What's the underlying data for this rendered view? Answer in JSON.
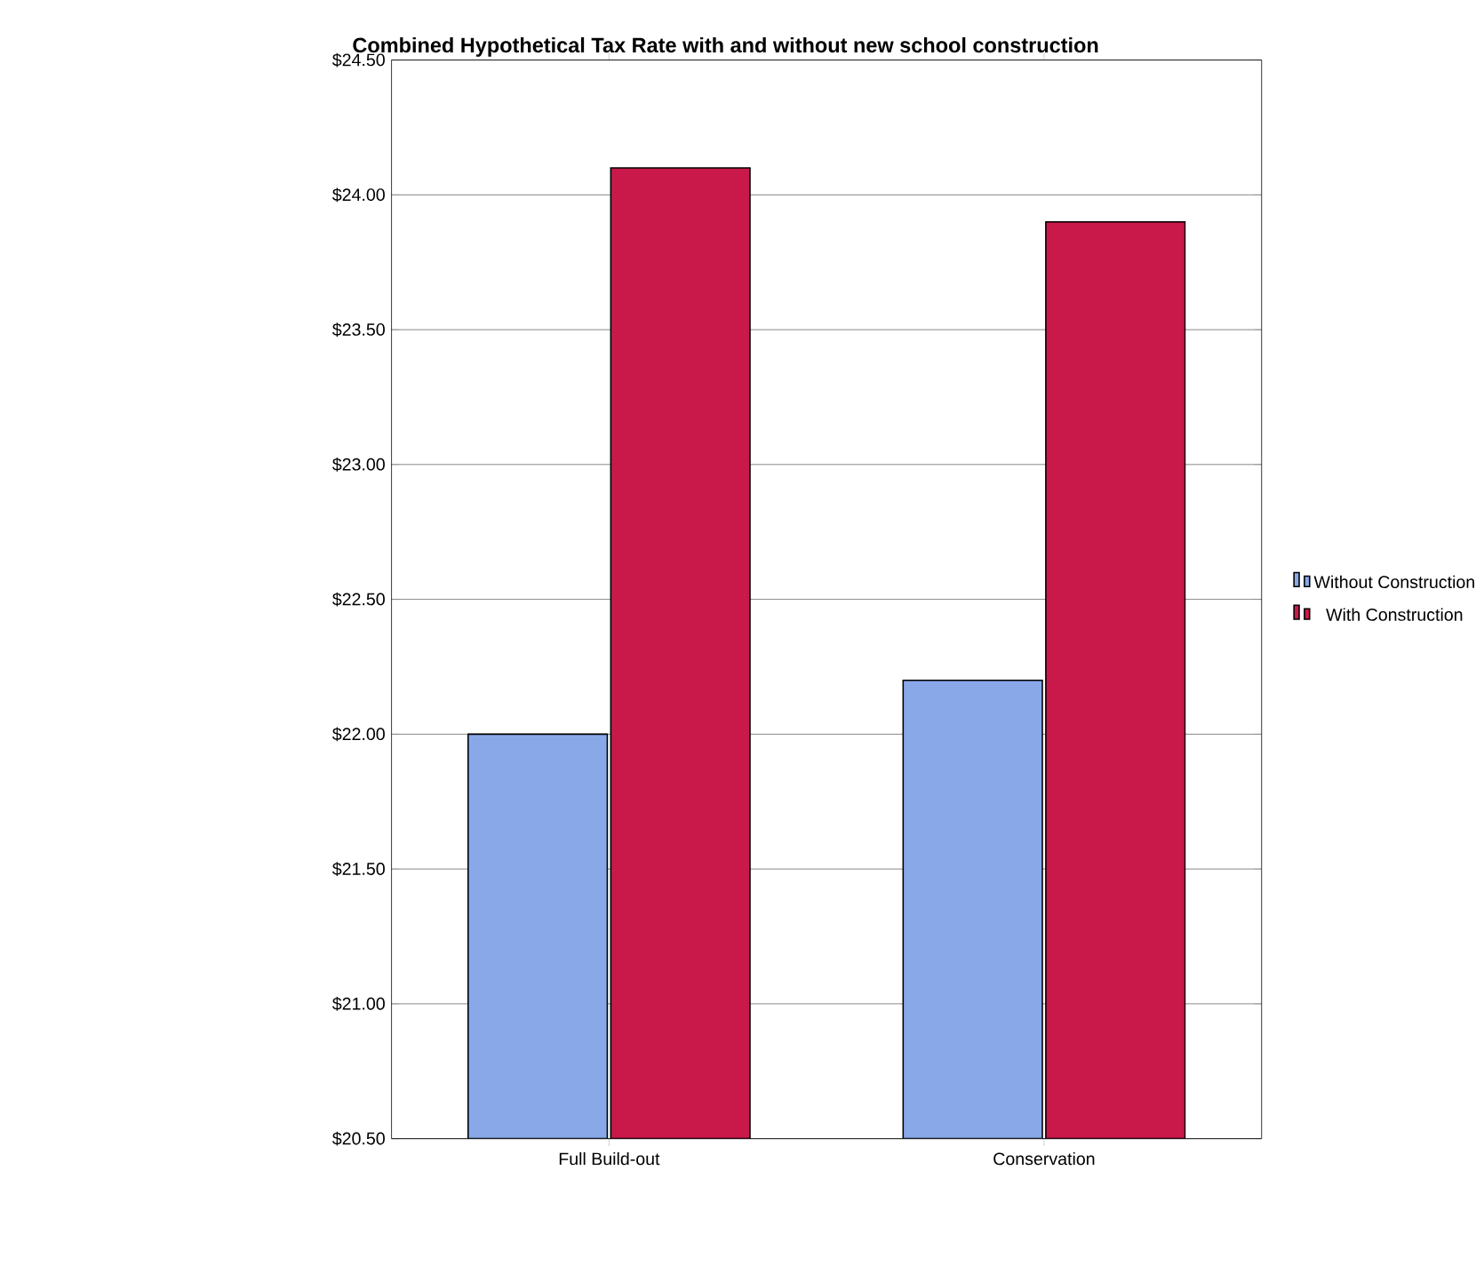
{
  "chart_data": {
    "type": "bar",
    "title": "Combined Hypothetical Tax Rate with and without new school construction",
    "categories": [
      "Full Build-out",
      "Conservation"
    ],
    "series": [
      {
        "name": "Without Construction",
        "color": "#88a8e8",
        "values": [
          22.0,
          22.2
        ]
      },
      {
        "name": "With Construction",
        "color": "#c8194a",
        "values": [
          24.1,
          23.9
        ]
      }
    ],
    "ylim": [
      20.5,
      24.5
    ],
    "yticks": [
      {
        "value": 20.5,
        "label": "$20.50"
      },
      {
        "value": 21,
        "label": "$21.00"
      },
      {
        "value": 21.5,
        "label": "$21.50"
      },
      {
        "value": 22,
        "label": "$22.00"
      },
      {
        "value": 22.5,
        "label": "$22.50"
      },
      {
        "value": 23,
        "label": "$23.00"
      },
      {
        "value": 23.5,
        "label": "$23.50"
      },
      {
        "value": 24,
        "label": "$24.00"
      },
      {
        "value": 24.5,
        "label": "$24.50"
      }
    ],
    "grid": "y",
    "legend": "right"
  }
}
